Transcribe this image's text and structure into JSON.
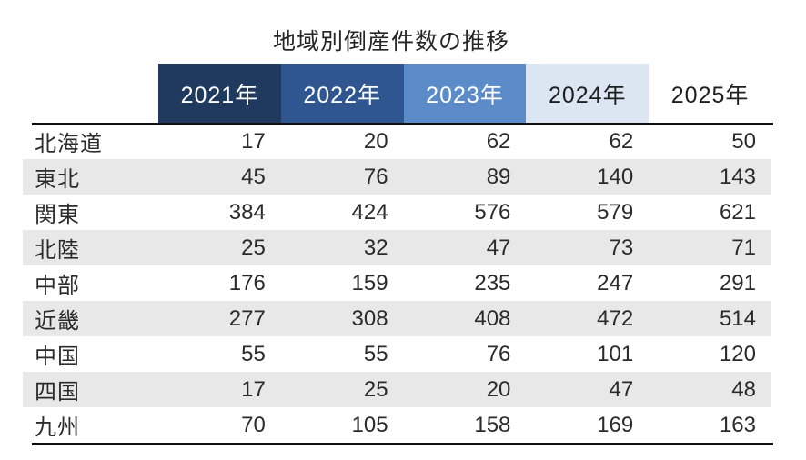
{
  "chart_data": {
    "type": "table",
    "title": "地域別倒産件数の推移",
    "categories": [
      "2021年",
      "2022年",
      "2023年",
      "2024年",
      "2025年"
    ],
    "series": [
      {
        "name": "北海道",
        "values": [
          17,
          20,
          62,
          62,
          50
        ]
      },
      {
        "name": "東北",
        "values": [
          45,
          76,
          89,
          140,
          143
        ]
      },
      {
        "name": "関東",
        "values": [
          384,
          424,
          576,
          579,
          621
        ]
      },
      {
        "name": "北陸",
        "values": [
          25,
          32,
          47,
          73,
          71
        ]
      },
      {
        "name": "中部",
        "values": [
          176,
          159,
          235,
          247,
          291
        ]
      },
      {
        "name": "近畿",
        "values": [
          277,
          308,
          408,
          472,
          514
        ]
      },
      {
        "name": "中国",
        "values": [
          55,
          55,
          76,
          101,
          120
        ]
      },
      {
        "name": "四国",
        "values": [
          17,
          25,
          20,
          47,
          48
        ]
      },
      {
        "name": "九州",
        "values": [
          70,
          105,
          158,
          169,
          163
        ]
      }
    ],
    "layout": {
      "striped_rows": true,
      "header_gradient": "dark-blue to white, left to right"
    }
  },
  "header_styles": [
    {
      "bg": "#1f3a5e",
      "fg": "#ffffff"
    },
    {
      "bg": "#2f5690",
      "fg": "#ffffff"
    },
    {
      "bg": "#5c8bca",
      "fg": "#ffffff"
    },
    {
      "bg": "#dce6f3",
      "fg": "#1f1f1f"
    },
    {
      "bg": "transparent",
      "fg": "#1f1f1f"
    }
  ],
  "colors": {
    "stripe": "#e8e8e8",
    "rule": "#111111",
    "text": "#2b2b2b",
    "background": "#ffffff"
  }
}
